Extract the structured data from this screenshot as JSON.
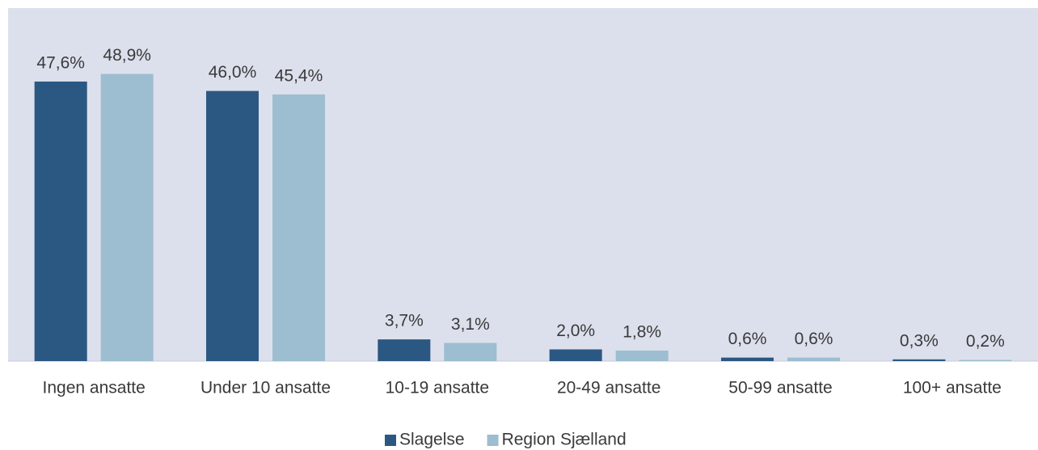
{
  "chart_data": {
    "type": "bar",
    "categories": [
      "Ingen ansatte",
      "Under 10 ansatte",
      "10-19 ansatte",
      "20-49 ansatte",
      "50-99 ansatte",
      "100+ ansatte"
    ],
    "series": [
      {
        "name": "Slagelse",
        "color": "#2b5882",
        "values": [
          47.6,
          46.0,
          3.7,
          2.0,
          0.6,
          0.3
        ],
        "value_labels": [
          "47,6%",
          "46,0%",
          "3,7%",
          "2,0%",
          "0,6%",
          "0,3%"
        ]
      },
      {
        "name": "Region Sjælland",
        "color": "#9dbdd1",
        "values": [
          48.9,
          45.4,
          3.1,
          1.8,
          0.6,
          0.2
        ],
        "value_labels": [
          "48,9%",
          "45,4%",
          "3,1%",
          "1,8%",
          "0,6%",
          "0,2%"
        ]
      }
    ],
    "legend": "bottom"
  }
}
